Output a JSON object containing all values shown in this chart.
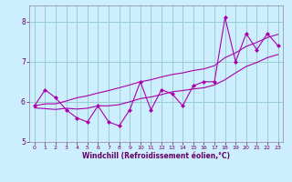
{
  "xlabel": "Windchill (Refroidissement éolien,°C)",
  "x": [
    0,
    1,
    2,
    3,
    4,
    5,
    6,
    7,
    8,
    9,
    10,
    11,
    12,
    13,
    14,
    15,
    16,
    17,
    18,
    19,
    20,
    21,
    22,
    23
  ],
  "y_zigzag": [
    5.9,
    6.3,
    6.1,
    5.8,
    5.6,
    5.5,
    5.9,
    5.5,
    5.4,
    5.8,
    6.5,
    5.8,
    6.3,
    6.2,
    5.9,
    6.4,
    6.5,
    6.5,
    8.1,
    7.0,
    7.7,
    7.3,
    7.7,
    7.4
  ],
  "y_lower": [
    5.85,
    5.83,
    5.81,
    5.84,
    5.82,
    5.84,
    5.9,
    5.9,
    5.93,
    6.0,
    6.08,
    6.12,
    6.18,
    6.25,
    6.28,
    6.32,
    6.35,
    6.42,
    6.55,
    6.72,
    6.88,
    6.98,
    7.1,
    7.18
  ],
  "y_upper": [
    5.9,
    5.95,
    5.95,
    6.02,
    6.1,
    6.15,
    6.22,
    6.28,
    6.35,
    6.42,
    6.5,
    6.55,
    6.62,
    6.68,
    6.72,
    6.78,
    6.82,
    6.9,
    7.1,
    7.22,
    7.38,
    7.48,
    7.6,
    7.68
  ],
  "line_color": "#aa00aa",
  "bg_color": "#cceeff",
  "grid_color": "#99cccc",
  "ylim": [
    5.0,
    8.4
  ],
  "xlim": [
    -0.5,
    23.5
  ],
  "yticks": [
    5,
    6,
    7,
    8
  ],
  "xticks": [
    0,
    1,
    2,
    3,
    4,
    5,
    6,
    7,
    8,
    9,
    10,
    11,
    12,
    13,
    14,
    15,
    16,
    17,
    18,
    19,
    20,
    21,
    22,
    23
  ]
}
